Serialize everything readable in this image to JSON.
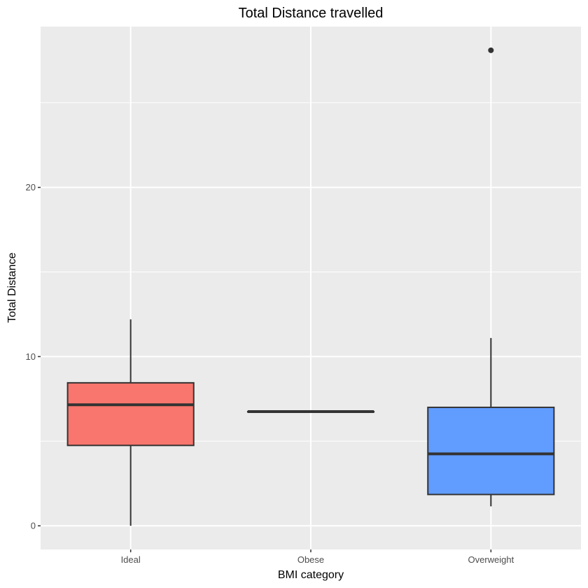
{
  "chart_data": {
    "type": "boxplot",
    "title": "Total Distance travelled",
    "xlabel": "BMI category",
    "ylabel": "Total Distance",
    "categories": [
      "Ideal",
      "Obese",
      "Overweight"
    ],
    "ylim": [
      -1.4,
      29.5
    ],
    "yticks": [
      0,
      10,
      20
    ],
    "yticks_minor": [
      5,
      15,
      25
    ],
    "grid": true,
    "legend": "none",
    "boxes": [
      {
        "category": "Ideal",
        "color": "#F8766D",
        "min": 0.0,
        "q1": 4.75,
        "median": 7.15,
        "q3": 8.45,
        "max": 12.2,
        "outliers": []
      },
      {
        "category": "Obese",
        "color": "#00BA38",
        "min": 6.75,
        "q1": 6.75,
        "median": 6.75,
        "q3": 6.75,
        "max": 6.75,
        "outliers": []
      },
      {
        "category": "Overweight",
        "color": "#619CFF",
        "min": 1.15,
        "q1": 1.85,
        "median": 4.25,
        "q3": 7.0,
        "max": 11.1,
        "outliers": [
          28.1
        ]
      }
    ]
  }
}
